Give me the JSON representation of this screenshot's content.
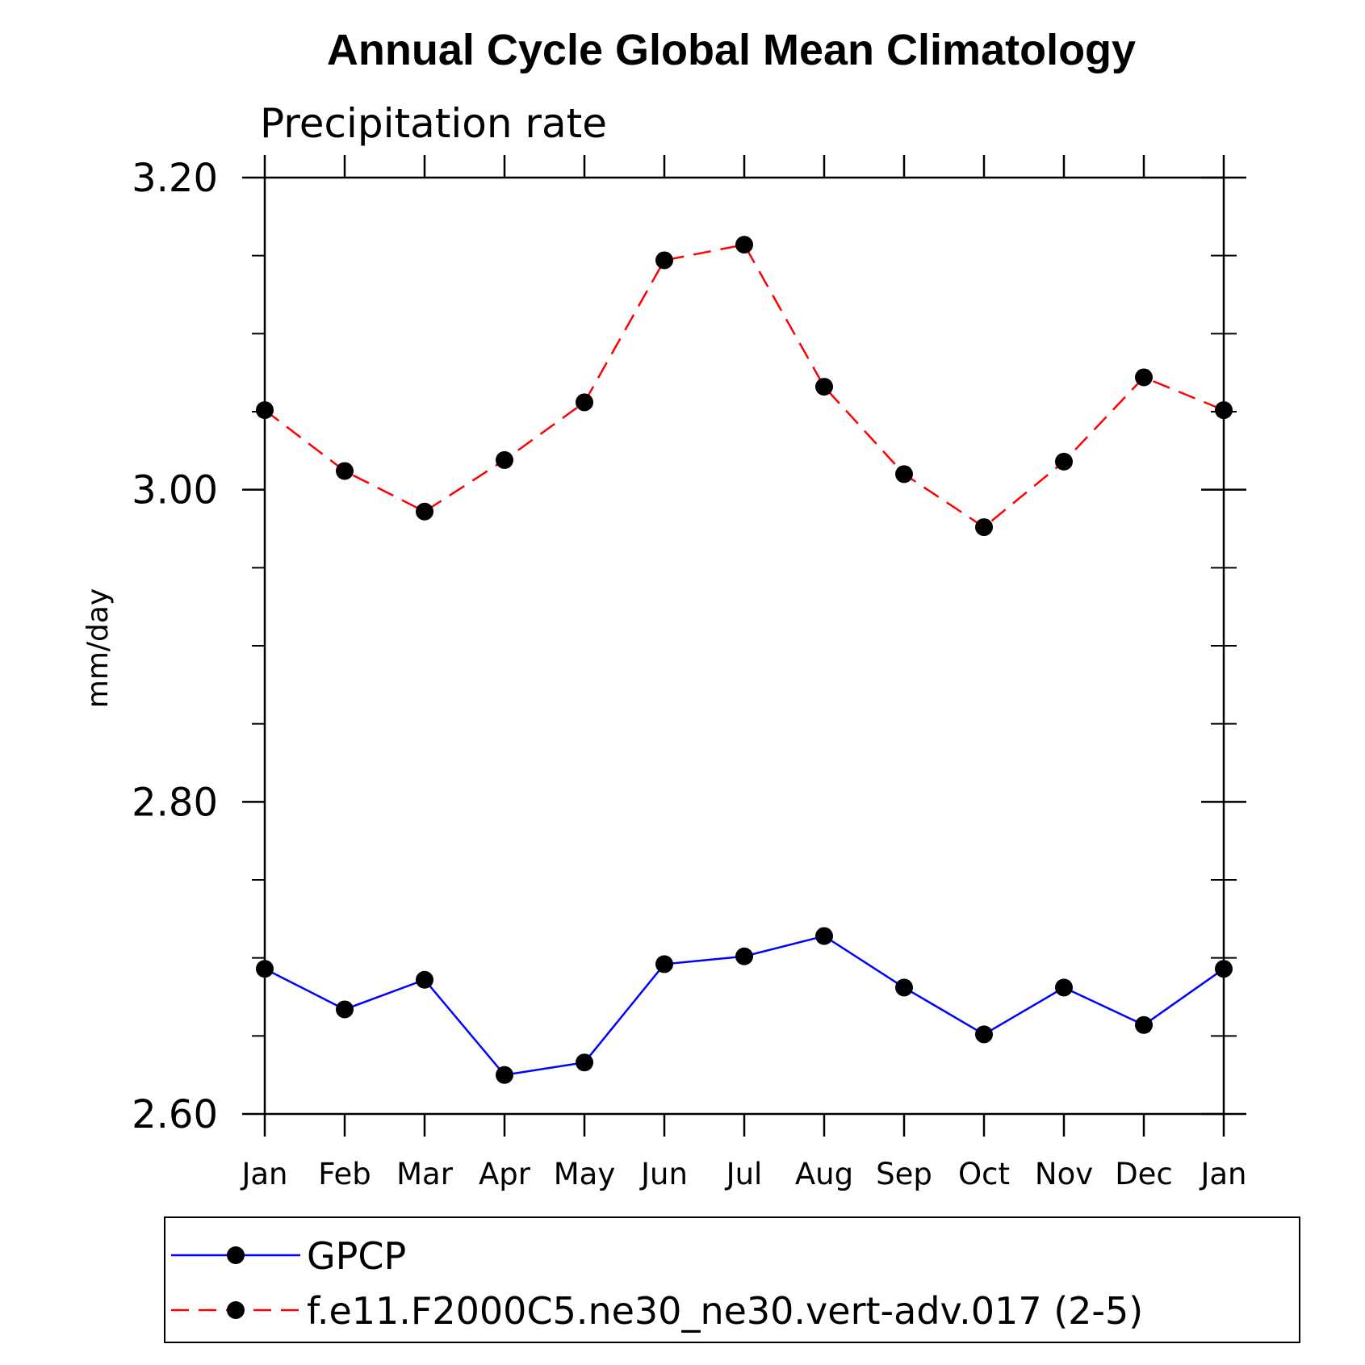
{
  "chart_data": {
    "type": "line",
    "title": "Annual Cycle Global Mean Climatology",
    "subtitle": "Precipitation rate",
    "ylabel": "mm/day",
    "xlabel": "",
    "categories": [
      "Jan",
      "Feb",
      "Mar",
      "Apr",
      "May",
      "Jun",
      "Jul",
      "Aug",
      "Sep",
      "Oct",
      "Nov",
      "Dec",
      "Jan"
    ],
    "ylim": [
      2.6,
      3.2
    ],
    "yticks_major": [
      "2.60",
      "2.80",
      "3.00",
      "3.20"
    ],
    "yticks_major_values": [
      2.6,
      2.8,
      3.0,
      3.2
    ],
    "yticks_minor_step": 0.05,
    "grid": false,
    "legend_position": "bottom",
    "series": [
      {
        "name": "GPCP",
        "color": "#0000ff",
        "dash": "solid",
        "marker": "filled-circle",
        "marker_color": "#000000",
        "values": [
          2.693,
          2.667,
          2.686,
          2.625,
          2.633,
          2.696,
          2.701,
          2.714,
          2.681,
          2.651,
          2.681,
          2.657,
          2.693
        ]
      },
      {
        "name": "f.e11.F2000C5.ne30_ne30.vert-adv.017 (2-5)",
        "color": "#ff0000",
        "dash": "dashed",
        "marker": "filled-circle",
        "marker_color": "#000000",
        "values": [
          3.051,
          3.012,
          2.986,
          3.019,
          3.056,
          3.147,
          3.157,
          3.066,
          3.01,
          2.976,
          3.018,
          3.072,
          3.051
        ]
      }
    ]
  }
}
